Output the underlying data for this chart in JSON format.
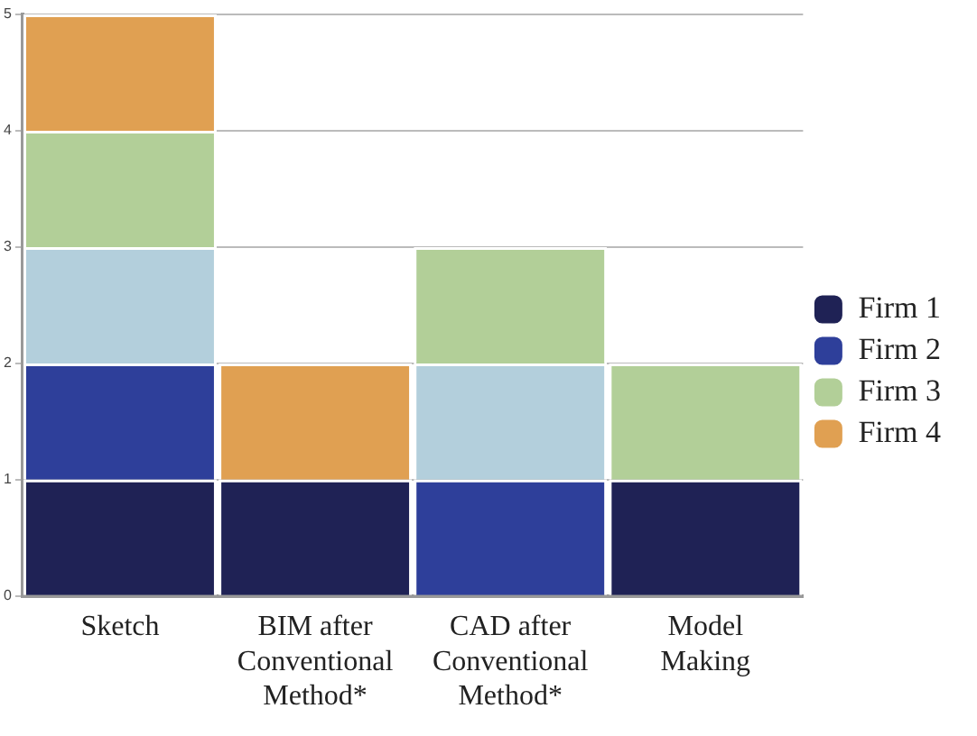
{
  "chart_data": {
    "type": "bar",
    "stacked": true,
    "categories": [
      "Sketch",
      "BIM after Conventional Method*",
      "CAD after Conventional Method*",
      "Model Making"
    ],
    "series": [
      {
        "name": "Firm 1",
        "color": "#1f2255",
        "values": [
          1,
          1,
          0,
          1
        ]
      },
      {
        "name": "Firm 2",
        "color": "#2e3f9a",
        "values": [
          1,
          0,
          1,
          0
        ]
      },
      {
        "color": "#b3cfdc",
        "values": [
          1,
          0,
          1,
          0
        ]
      },
      {
        "name": "Firm 3",
        "color": "#b2cf98",
        "values": [
          1,
          0,
          1,
          1
        ]
      },
      {
        "name": "Firm 4",
        "color": "#e0a052",
        "values": [
          1,
          1,
          0,
          0
        ]
      }
    ],
    "ylim": [
      0,
      5
    ],
    "yticks": [
      0,
      1,
      2,
      3,
      4,
      5
    ],
    "grid": "y",
    "legend": "right"
  }
}
